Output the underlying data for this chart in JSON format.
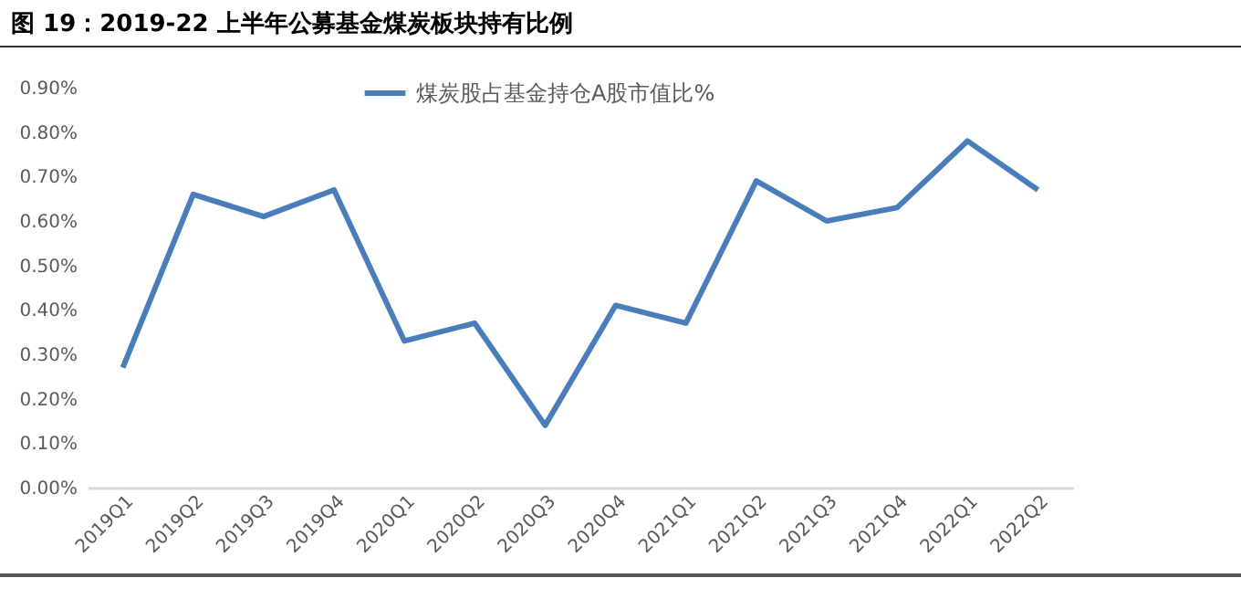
{
  "chart_data": {
    "type": "line",
    "title": "图 19：2019-22 上半年公募基金煤炭板块持有比例",
    "categories": [
      "2019Q1",
      "2019Q2",
      "2019Q3",
      "2019Q4",
      "2020Q1",
      "2020Q2",
      "2020Q3",
      "2020Q4",
      "2021Q1",
      "2021Q2",
      "2021Q3",
      "2021Q4",
      "2022Q1",
      "2022Q2"
    ],
    "series": [
      {
        "name": "煤炭股占基金持仓A股市值比%",
        "color": "#4a7ebb",
        "values": [
          0.27,
          0.66,
          0.61,
          0.67,
          0.33,
          0.37,
          0.14,
          0.41,
          0.37,
          0.69,
          0.6,
          0.63,
          0.78,
          0.67
        ]
      }
    ],
    "ylim": [
      0,
      0.9
    ],
    "yticks": [
      {
        "value": 0,
        "label": "0.00%"
      },
      {
        "value": 0.1,
        "label": "0.10%"
      },
      {
        "value": 0.2,
        "label": "0.20%"
      },
      {
        "value": 0.3,
        "label": "0.30%"
      },
      {
        "value": 0.4,
        "label": "0.40%"
      },
      {
        "value": 0.5,
        "label": "0.50%"
      },
      {
        "value": 0.6,
        "label": "0.60%"
      },
      {
        "value": 0.7,
        "label": "0.70%"
      },
      {
        "value": 0.8,
        "label": "0.80%"
      },
      {
        "value": 0.9,
        "label": "0.90%"
      }
    ],
    "grid": false,
    "legend": "top right",
    "marker": "none",
    "line_style": "solid"
  }
}
